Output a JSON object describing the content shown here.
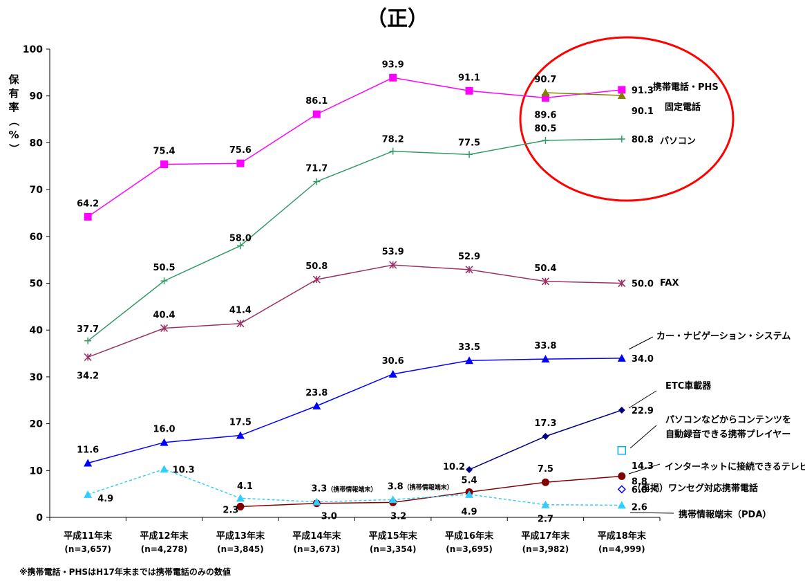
{
  "chart_data": {
    "type": "line",
    "title": "（正）",
    "ylabel": "保有率（%）",
    "ylim": [
      0,
      100
    ],
    "yticks": [
      0,
      10,
      20,
      30,
      40,
      50,
      60,
      70,
      80,
      90,
      100
    ],
    "categories": [
      "平成11年末",
      "平成12年末",
      "平成13年末",
      "平成14年末",
      "平成15年末",
      "平成16年末",
      "平成17年末",
      "平成18年末"
    ],
    "category_sub": [
      "(n=3,657)",
      "(n=4,278)",
      "(n=3,845)",
      "(n=3,673)",
      "(n=3,354)",
      "(n=3,695)",
      "(n=3,982)",
      "(n=4,999)"
    ],
    "grid": false,
    "series": [
      {
        "name": "携帯電話・PHS",
        "color": "#ff00ff",
        "marker": "square",
        "dashed": false,
        "values": [
          64.2,
          75.4,
          75.6,
          86.1,
          93.9,
          91.1,
          89.6,
          91.3
        ],
        "labels": [
          "64.2",
          "75.4",
          "75.6",
          "86.1",
          "93.9",
          "91.1",
          "89.6",
          "91.3"
        ]
      },
      {
        "name": "固定電話",
        "color": "#808000",
        "marker": "triangle",
        "dashed": false,
        "values": [
          null,
          null,
          null,
          null,
          null,
          null,
          90.7,
          90.1
        ],
        "labels": [
          null,
          null,
          null,
          null,
          null,
          null,
          "90.7",
          "90.1"
        ]
      },
      {
        "name": "パソコン",
        "color": "#339966",
        "marker": "plus",
        "dashed": false,
        "values": [
          37.7,
          50.5,
          58.0,
          71.7,
          78.2,
          77.5,
          80.5,
          80.8
        ],
        "labels": [
          "37.7",
          "50.5",
          "58.0",
          "71.7",
          "78.2",
          "77.5",
          "80.5",
          "80.8"
        ]
      },
      {
        "name": "FAX",
        "color": "#993366",
        "marker": "star",
        "dashed": false,
        "values": [
          34.2,
          40.4,
          41.4,
          50.8,
          53.9,
          52.9,
          50.4,
          50.0
        ],
        "labels": [
          "34.2",
          "40.4",
          "41.4",
          "50.8",
          "53.9",
          "52.9",
          "50.4",
          "50.0"
        ]
      },
      {
        "name": "カー・ナビゲーション・システム",
        "color": "#0000ff",
        "marker": "triangle",
        "dashed": false,
        "values": [
          11.6,
          16.0,
          17.5,
          23.8,
          30.6,
          33.5,
          33.8,
          34.0
        ],
        "labels": [
          "11.6",
          "16.0",
          "17.5",
          "23.8",
          "30.6",
          "33.5",
          "33.8",
          "34.0"
        ]
      },
      {
        "name": "ETC車載器",
        "color": "#000080",
        "marker": "diamond",
        "dashed": false,
        "values": [
          null,
          null,
          null,
          null,
          null,
          10.2,
          17.3,
          22.9
        ],
        "labels": [
          null,
          null,
          null,
          null,
          null,
          "10.2",
          "17.3",
          "22.9"
        ]
      },
      {
        "name": "パソコンなどからコンテンツを自動録音できる携帯プレイヤー",
        "color": "#00b0f0",
        "marker": "square-open",
        "dashed": false,
        "values": [
          null,
          null,
          null,
          null,
          null,
          null,
          null,
          14.3
        ],
        "labels": [
          null,
          null,
          null,
          null,
          null,
          null,
          null,
          "14.3"
        ]
      },
      {
        "name": "インターネットに接続できるテレビ",
        "color": "#800000",
        "marker": "circle",
        "dashed": false,
        "values": [
          null,
          null,
          2.3,
          3.0,
          3.2,
          5.4,
          7.5,
          8.8
        ],
        "labels": [
          null,
          null,
          "2.3",
          "3.0",
          "3.2",
          "5.4",
          "7.5",
          "8.8"
        ]
      },
      {
        "name": "（再掲）ワンセグ対応携帯電話",
        "color": "#0000ff",
        "marker": "diamond-open",
        "dashed": false,
        "values": [
          null,
          null,
          null,
          null,
          null,
          null,
          null,
          6.0
        ],
        "labels": [
          null,
          null,
          null,
          null,
          null,
          null,
          null,
          "6.0"
        ]
      },
      {
        "name": "携帯情報端末（PDA）",
        "color": "#33ccff",
        "marker": "triangle",
        "dashed": true,
        "values": [
          4.9,
          10.3,
          4.1,
          3.3,
          3.8,
          4.9,
          2.7,
          2.6
        ],
        "labels": [
          "4.9",
          "10.3",
          "4.1",
          "3.3（携帯情報端末）",
          "3.8（携帯情報端末）",
          "4.9",
          "2.7",
          "2.6"
        ]
      }
    ],
    "series_name_labels": [
      "携帯電話・PHS",
      "固定電話",
      "パソコン",
      "FAX",
      "カー・ナビゲーション・システム",
      "ETC車載器",
      "パソコンなどからコンテンツを",
      "自動録音できる携帯プレイヤー",
      "インターネットに接続できるテレビ",
      "（再掲）ワンセグ対応携帯電話",
      "携帯情報端末（PDA）"
    ],
    "annotation": "red-circle-highlight",
    "annotation_color": "#ff0000"
  },
  "footnote": "※携帯電話・PHSはH17年末までは携帯電話のみの数値"
}
